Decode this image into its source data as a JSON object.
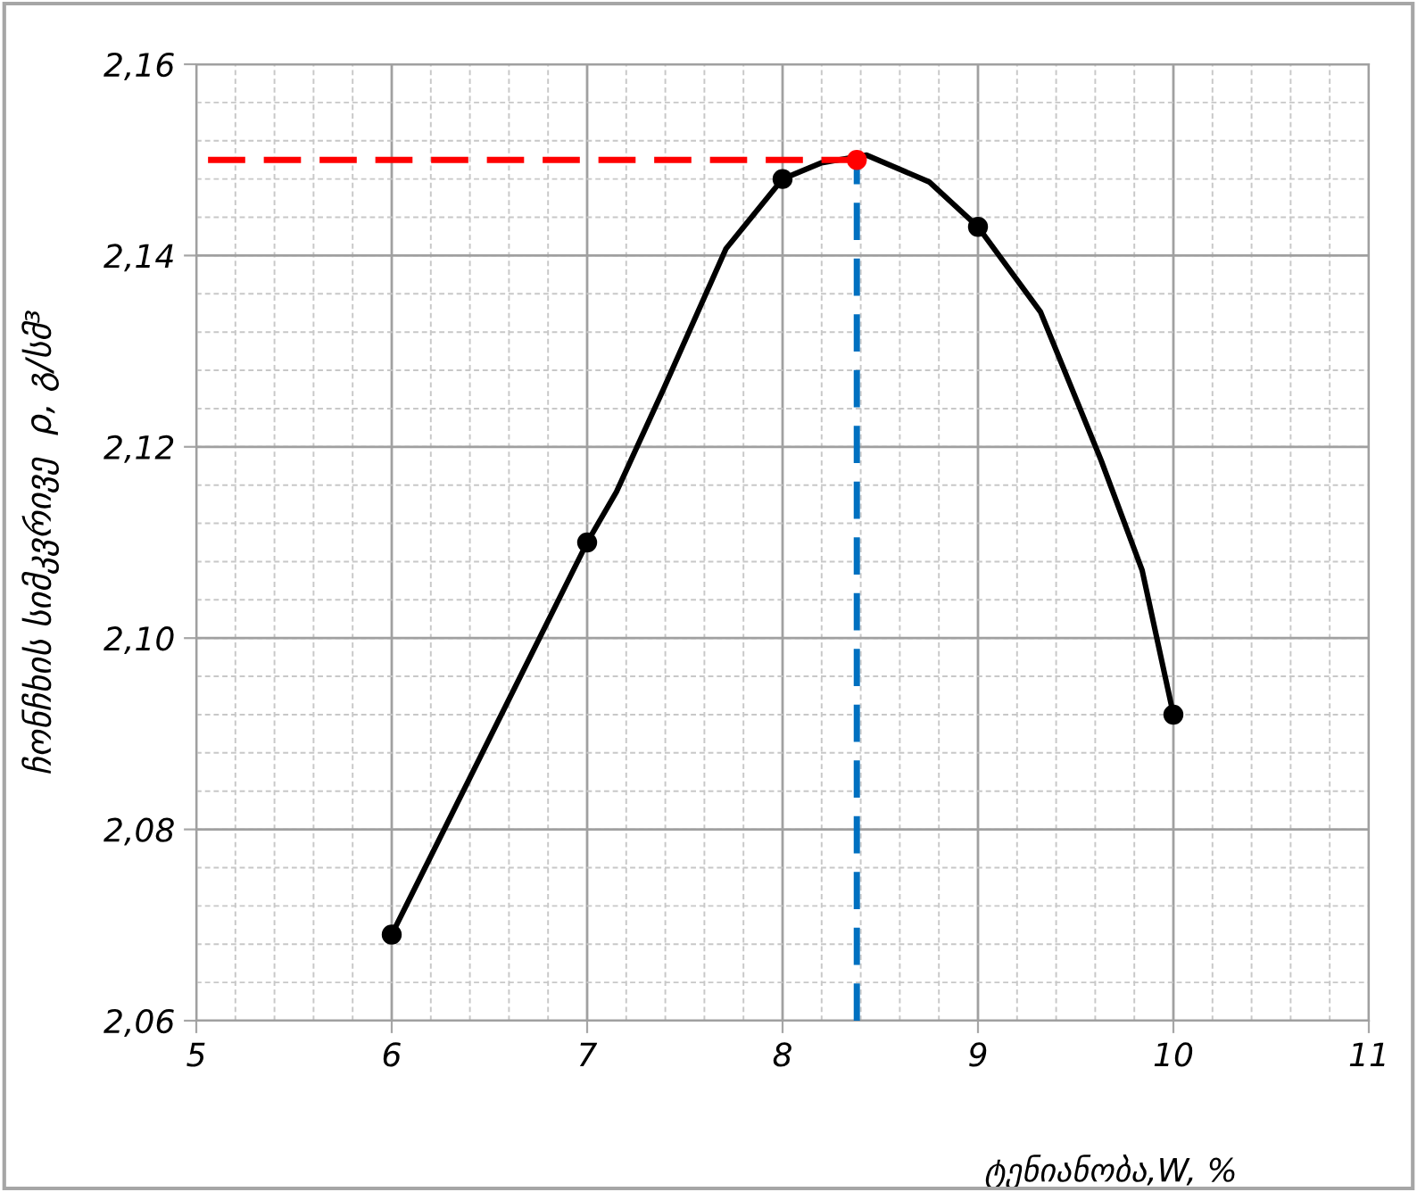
{
  "chart_data": {
    "type": "line",
    "xlabel": "ტენიანობა,W, %",
    "ylabel": "ჩონჩხის სიმკვრივე  ρ, გ/სმ³",
    "xlim": [
      5,
      11
    ],
    "xticks": [
      5,
      6,
      7,
      8,
      9,
      10,
      11
    ],
    "ylim": [
      2.06,
      2.16
    ],
    "yticks": [
      {
        "value": 2.06,
        "label": "2,06"
      },
      {
        "value": 2.08,
        "label": "2,08"
      },
      {
        "value": 2.1,
        "label": "2,10"
      },
      {
        "value": 2.12,
        "label": "2,12"
      },
      {
        "value": 2.14,
        "label": "2,14"
      },
      {
        "value": 2.16,
        "label": "2,16"
      }
    ],
    "grid": true,
    "series": [
      {
        "color": "#000000",
        "x": [
          6,
          7,
          7.15,
          7.39,
          7.71,
          8,
          8.2,
          8.43,
          8.75,
          9,
          9.32,
          9.63,
          9.84,
          10
        ],
        "values": [
          2.069,
          2.11,
          2.1153,
          2.126,
          2.1407,
          2.148,
          2.1497,
          2.1505,
          2.1477,
          2.143,
          2.1341,
          2.1186,
          2.1071,
          2.092
        ],
        "line_style": "solid",
        "marker": "none"
      },
      {
        "type": "scatter",
        "color": "#000000",
        "x": [
          6,
          7,
          8,
          9,
          10
        ],
        "values": [
          2.069,
          2.11,
          2.148,
          2.143,
          2.092
        ],
        "marker": "circle"
      },
      {
        "color": "#ff0000",
        "x": [
          5.06,
          8.38
        ],
        "values": [
          2.15,
          2.15
        ],
        "line_style": "dashed",
        "marker": "none"
      },
      {
        "color": "#0070c0",
        "x": [
          8.38,
          8.38
        ],
        "values": [
          2.06,
          2.15
        ],
        "line_style": "dashed",
        "marker": "none"
      },
      {
        "type": "scatter",
        "color": "#ff0000",
        "x": [
          8.38
        ],
        "values": [
          2.15
        ],
        "marker": "circle"
      }
    ]
  }
}
